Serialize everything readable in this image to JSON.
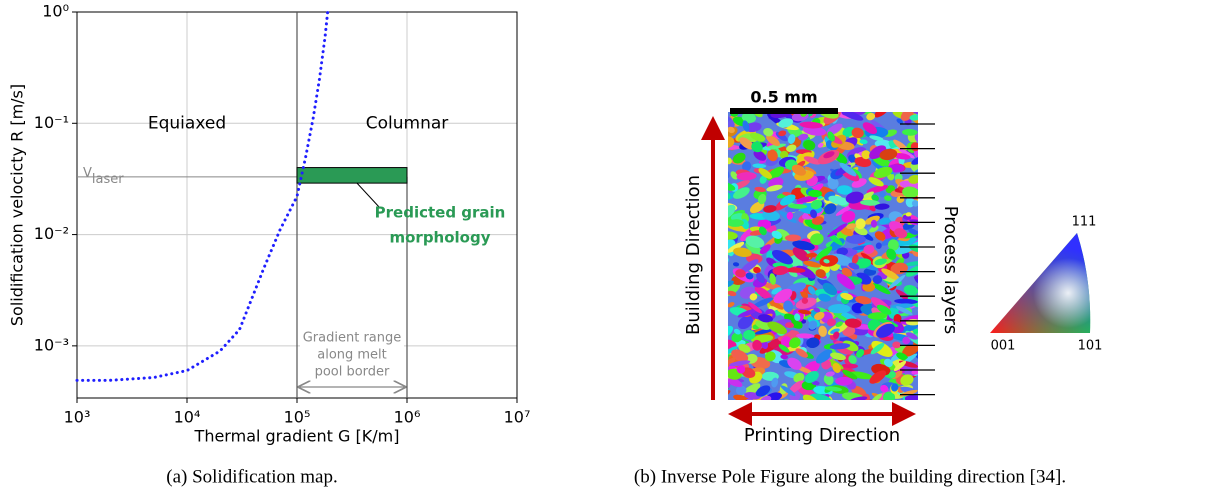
{
  "chart_data": {
    "type": "line",
    "xlabel": "Thermal gradient G [K/m]",
    "ylabel": "Solidification velocicty R [m/s]",
    "x": [
      1000,
      2000,
      5000,
      10000,
      20000,
      30000,
      50000,
      70000,
      100000,
      120000,
      140000,
      160000,
      180000,
      190000
    ],
    "series": [
      {
        "color": "#1f1fff",
        "values": [
          0.00049,
          0.00049,
          0.00052,
          0.0006,
          0.0009,
          0.0014,
          0.005,
          0.011,
          0.022,
          0.05,
          0.11,
          0.25,
          0.6,
          1
        ]
      }
    ],
    "xlim": [
      1000,
      10000000
    ],
    "ylim": [
      0.00034,
      1
    ],
    "log_x": true,
    "log_y": true,
    "grid": true,
    "xticks": [
      {
        "value": 1000,
        "label": "10³"
      },
      {
        "value": 10000,
        "label": "10⁴"
      },
      {
        "value": 100000,
        "label": "10⁵"
      },
      {
        "value": 1000000,
        "label": "10⁶"
      },
      {
        "value": 10000000,
        "label": "10⁷"
      }
    ],
    "yticks": [
      {
        "value": 0.001,
        "label": "10⁻³"
      },
      {
        "value": 0.01,
        "label": "10⁻²"
      },
      {
        "value": 0.1,
        "label": "10⁻¹"
      },
      {
        "value": 1,
        "label": "10⁰"
      }
    ],
    "regions": [
      {
        "label": "Equiaxed",
        "x": 10000,
        "y": 0.1
      },
      {
        "label": "Columnar",
        "x": 1000000,
        "y": 0.1
      }
    ],
    "v_laser": {
      "label": "V",
      "sub": "laser",
      "value": 0.033
    },
    "prediction": {
      "label": [
        "Predicted grain",
        "morphology"
      ],
      "color": "#2a9a55",
      "x": [
        100000,
        1000000
      ],
      "y": [
        0.029,
        0.04
      ]
    },
    "gradient_range": {
      "label": [
        "Gradient range",
        "along melt",
        "pool border"
      ]
    }
  },
  "figure": {
    "caption_a": "(a) Solidification map.",
    "caption_b": "(b) Inverse Pole Figure along the building direction [34].",
    "scale_bar": "0.5 mm",
    "building_direction": "Building Direction",
    "printing_direction": "Printing Direction",
    "process_layers": "Process layers",
    "ipf": [
      "001",
      "101",
      "111"
    ]
  }
}
